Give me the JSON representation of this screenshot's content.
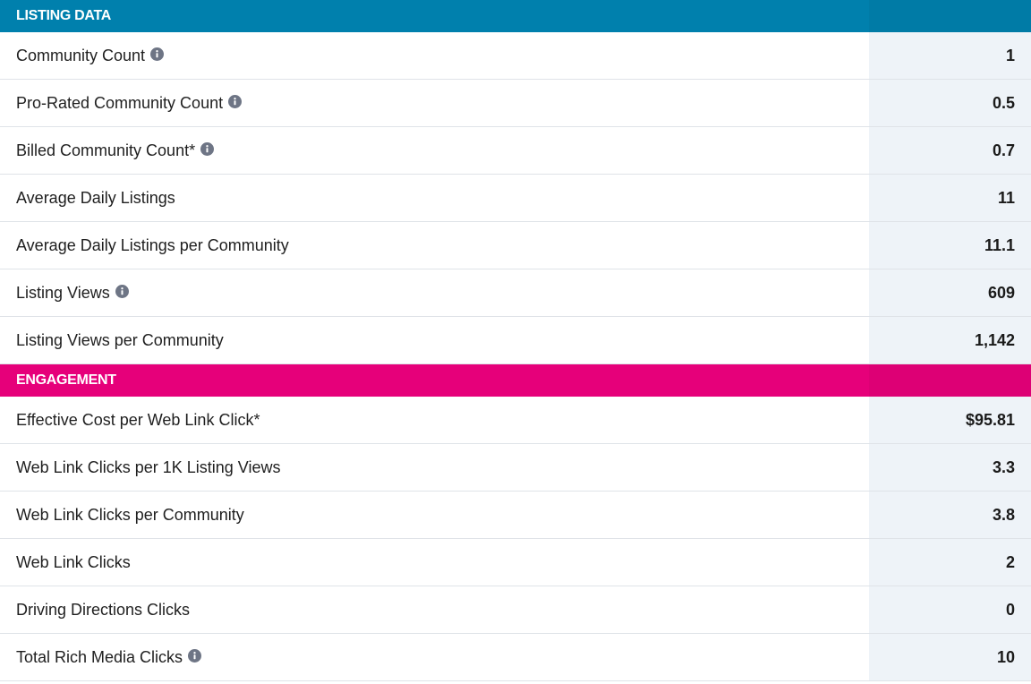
{
  "colors": {
    "listing_header": "#0080ad",
    "engagement_header": "#e6007a",
    "value_column_bg": "#eef3f8",
    "info_icon": "#6e7585"
  },
  "sections": [
    {
      "title": "LISTING DATA",
      "color": "#0080ad",
      "rows": [
        {
          "label": "Community Count",
          "value": "1",
          "info": true
        },
        {
          "label": "Pro-Rated Community Count",
          "value": "0.5",
          "info": true
        },
        {
          "label": "Billed Community Count*",
          "value": "0.7",
          "info": true
        },
        {
          "label": "Average Daily Listings",
          "value": "11",
          "info": false
        },
        {
          "label": "Average Daily Listings per Community",
          "value": "11.1",
          "info": false
        },
        {
          "label": "Listing Views",
          "value": "609",
          "info": true
        },
        {
          "label": "Listing Views per Community",
          "value": "1,142",
          "info": false
        }
      ]
    },
    {
      "title": "ENGAGEMENT",
      "color": "#e6007a",
      "rows": [
        {
          "label": "Effective Cost per Web Link Click*",
          "value": "$95.81",
          "info": false
        },
        {
          "label": "Web Link Clicks per 1K Listing Views",
          "value": "3.3",
          "info": false
        },
        {
          "label": "Web Link Clicks per Community",
          "value": "3.8",
          "info": false
        },
        {
          "label": "Web Link Clicks",
          "value": "2",
          "info": false
        },
        {
          "label": "Driving Directions Clicks",
          "value": "0",
          "info": false
        },
        {
          "label": "Total Rich Media Clicks",
          "value": "10",
          "info": true
        }
      ]
    }
  ],
  "icons": {
    "info": "info-icon"
  }
}
